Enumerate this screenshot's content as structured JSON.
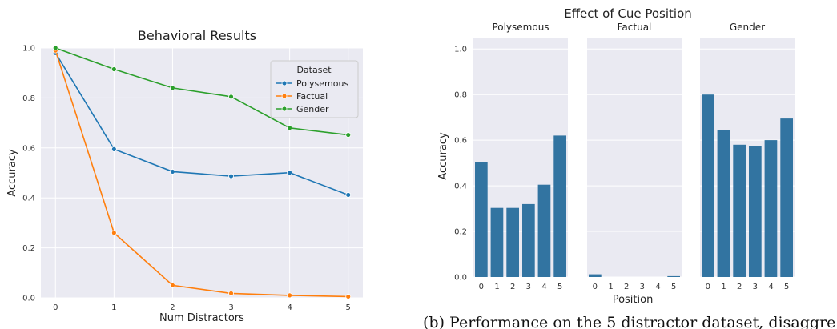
{
  "figure_title": "Effect of Cue Position",
  "caption": "(b) Performance on the 5 distractor dataset, disaggre",
  "chart_data": [
    {
      "type": "line",
      "title": "Behavioral Results",
      "xlabel": "Num Distractors",
      "ylabel": "Accuracy",
      "x": [
        0,
        1,
        2,
        3,
        4,
        5
      ],
      "xlim": [
        -0.25,
        5.25
      ],
      "ylim": [
        0,
        1.0
      ],
      "xticks": [
        "0",
        "1",
        "2",
        "3",
        "4",
        "5"
      ],
      "yticks": [
        "0.0",
        "0.2",
        "0.4",
        "0.6",
        "0.8",
        "1.0"
      ],
      "grid": true,
      "legend": {
        "title": "Dataset",
        "placement": "top-right"
      },
      "series": [
        {
          "name": "Polysemous",
          "color": "#1f77b4",
          "values": [
            0.98,
            0.595,
            0.505,
            0.487,
            0.501,
            0.412
          ]
        },
        {
          "name": "Factual",
          "color": "#ff7f0e",
          "values": [
            0.99,
            0.26,
            0.05,
            0.018,
            0.01,
            0.005
          ]
        },
        {
          "name": "Gender",
          "color": "#2ca02c",
          "values": [
            1.0,
            0.915,
            0.84,
            0.805,
            0.68,
            0.652
          ]
        }
      ]
    },
    {
      "type": "bar",
      "xlabel": "Position",
      "ylabel": "Accuracy",
      "categories": [
        "0",
        "1",
        "2",
        "3",
        "4",
        "5"
      ],
      "ylim": [
        0,
        1.05
      ],
      "yticks": [
        "0.0",
        "0.2",
        "0.4",
        "0.6",
        "0.8",
        "1.0"
      ],
      "color": "#3274a1",
      "grid": true,
      "panels": [
        {
          "title": "Polysemous",
          "values": [
            0.505,
            0.303,
            0.303,
            0.32,
            0.405,
            0.62
          ]
        },
        {
          "title": "Factual",
          "values": [
            0.012,
            0,
            0,
            0,
            0,
            0.004
          ]
        },
        {
          "title": "Gender",
          "values": [
            0.8,
            0.643,
            0.58,
            0.575,
            0.6,
            0.695
          ]
        }
      ]
    }
  ]
}
